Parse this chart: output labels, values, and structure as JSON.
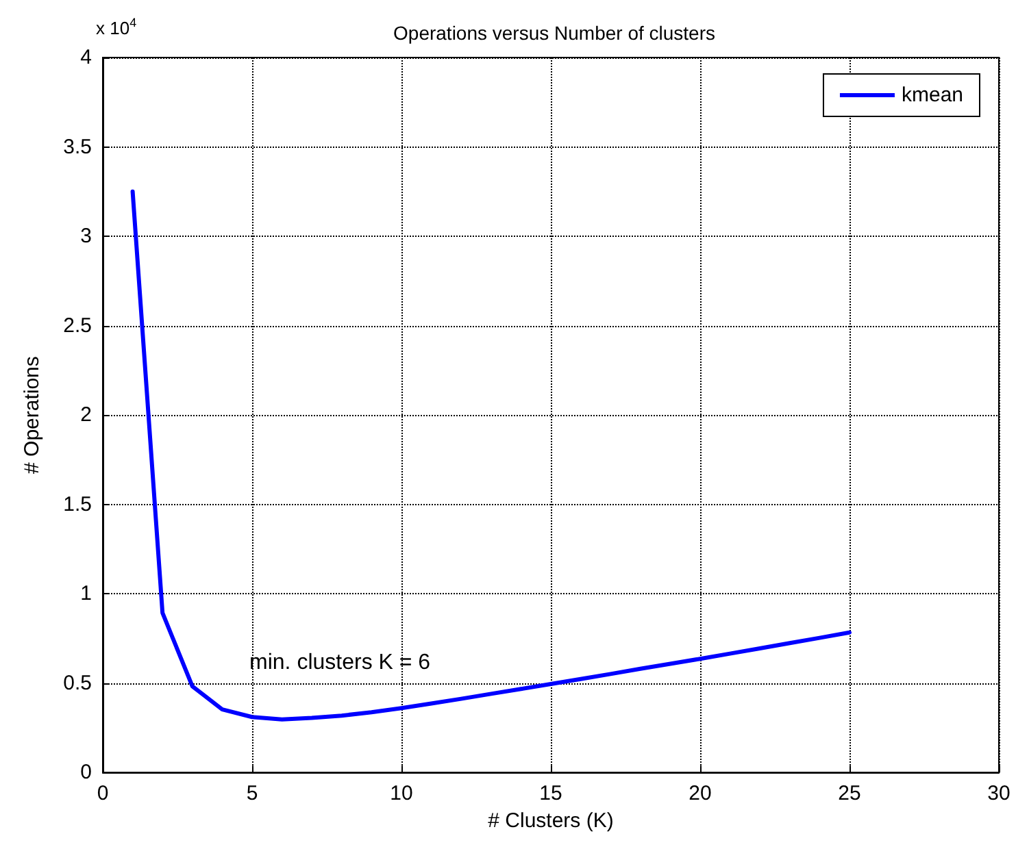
{
  "chart_data": {
    "type": "line",
    "title": "Operations versus Number of clusters",
    "xlabel": "# Clusters (K)",
    "ylabel": "# Operations",
    "x": [
      1,
      2,
      3,
      4,
      5,
      6,
      7,
      8,
      9,
      10,
      11,
      12,
      13,
      14,
      15,
      16,
      17,
      18,
      19,
      20,
      21,
      22,
      23,
      24,
      25
    ],
    "series": [
      {
        "name": "kmean",
        "color": "#0000ff",
        "values": [
          3.25,
          0.893,
          0.482,
          0.353,
          0.31,
          0.297,
          0.305,
          0.318,
          0.337,
          0.36,
          0.386,
          0.412,
          0.44,
          0.467,
          0.495,
          0.523,
          0.551,
          0.58,
          0.608,
          0.636,
          0.665,
          0.694,
          0.724,
          0.753,
          0.783
        ]
      }
    ],
    "xlim": [
      0,
      30
    ],
    "xticks": [
      0,
      5,
      10,
      15,
      20,
      25,
      30
    ],
    "ylim": [
      0,
      4
    ],
    "yticks": [
      0,
      0.5,
      1,
      1.5,
      2,
      2.5,
      3,
      3.5,
      4
    ],
    "annotations": [
      "x 10$^{4}$",
      "min. clusters K = 6"
    ],
    "grid": true,
    "legend": "top right",
    "marker": "none",
    "line_style": "solid"
  }
}
